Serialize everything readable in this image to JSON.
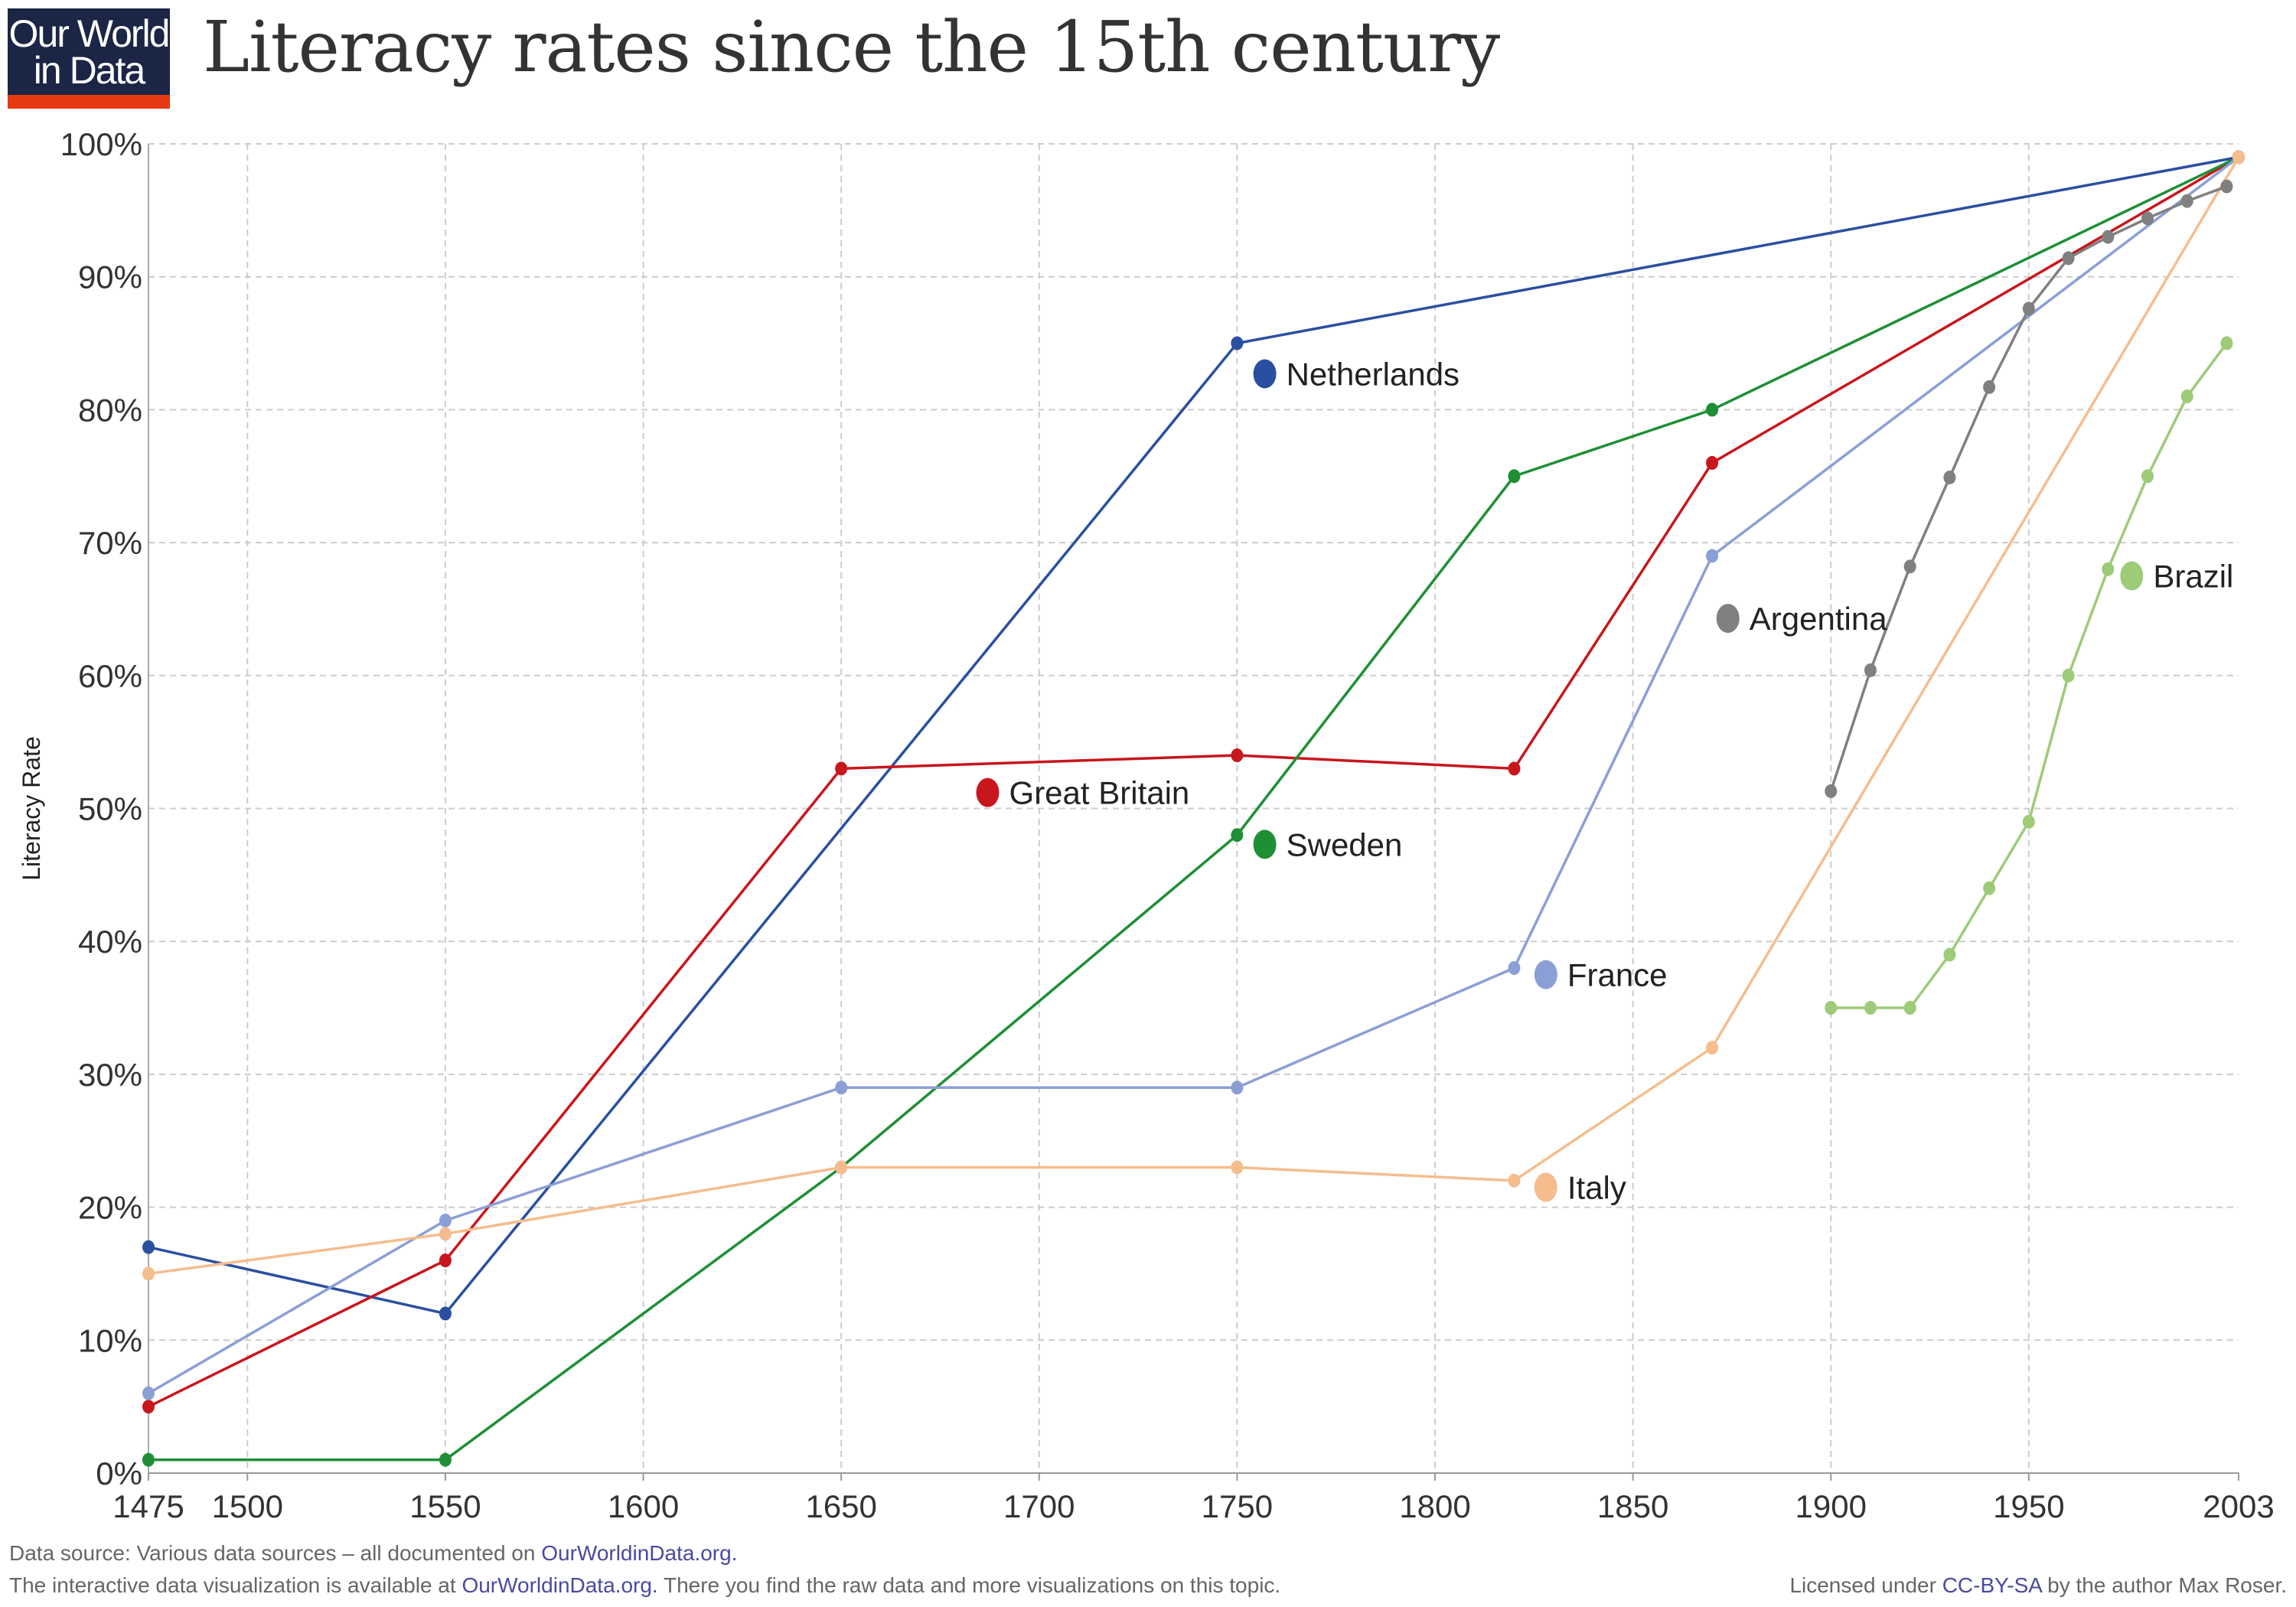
{
  "logo": {
    "line1": "Our World",
    "line2": "in Data"
  },
  "title": "Literacy rates since the 15th century",
  "chart_data": {
    "type": "line",
    "title": "Literacy rates since the 15th century",
    "ylabel": "Literacy Rate",
    "xlabel": "",
    "xlim": [
      1475,
      2003
    ],
    "ylim": [
      0,
      100
    ],
    "grid": true,
    "x_ticks": [
      1475,
      1500,
      1550,
      1600,
      1650,
      1700,
      1750,
      1800,
      1850,
      1900,
      1950,
      2003
    ],
    "y_ticks": [
      "0%",
      "10%",
      "20%",
      "30%",
      "40%",
      "50%",
      "60%",
      "70%",
      "80%",
      "90%",
      "100%"
    ],
    "series": [
      {
        "name": "Netherlands",
        "color": "#2a4fa0",
        "points": [
          [
            1475,
            17
          ],
          [
            1550,
            12
          ],
          [
            1750,
            85
          ],
          [
            2003,
            99
          ]
        ]
      },
      {
        "name": "Great Britain",
        "color": "#c8161d",
        "points": [
          [
            1475,
            5
          ],
          [
            1550,
            16
          ],
          [
            1650,
            53
          ],
          [
            1750,
            54
          ],
          [
            1820,
            53
          ],
          [
            1870,
            76
          ],
          [
            2003,
            99
          ]
        ]
      },
      {
        "name": "Sweden",
        "color": "#1e8f35",
        "points": [
          [
            1475,
            1
          ],
          [
            1550,
            1
          ],
          [
            1650,
            23
          ],
          [
            1750,
            48
          ],
          [
            1820,
            75
          ],
          [
            1870,
            80
          ],
          [
            2003,
            99
          ]
        ]
      },
      {
        "name": "France",
        "color": "#8b9fd6",
        "points": [
          [
            1475,
            6
          ],
          [
            1550,
            19
          ],
          [
            1650,
            29
          ],
          [
            1750,
            29
          ],
          [
            1820,
            38
          ],
          [
            1870,
            69
          ],
          [
            2003,
            99
          ]
        ]
      },
      {
        "name": "Italy",
        "color": "#f5bd8d",
        "points": [
          [
            1475,
            15
          ],
          [
            1550,
            18
          ],
          [
            1650,
            23
          ],
          [
            1750,
            23
          ],
          [
            1820,
            22
          ],
          [
            1870,
            32
          ],
          [
            2003,
            99
          ]
        ]
      },
      {
        "name": "Argentina",
        "color": "#808080",
        "points": [
          [
            1900,
            51.3
          ],
          [
            1910,
            60.4
          ],
          [
            1920,
            68.2
          ],
          [
            1930,
            74.9
          ],
          [
            1940,
            81.7
          ],
          [
            1950,
            87.6
          ],
          [
            1960,
            91.4
          ],
          [
            1970,
            93
          ],
          [
            1980,
            94.4
          ],
          [
            1990,
            95.7
          ],
          [
            2000,
            96.8
          ]
        ]
      },
      {
        "name": "Brazil",
        "color": "#9dcb78",
        "points": [
          [
            1900,
            35
          ],
          [
            1910,
            35
          ],
          [
            1920,
            35
          ],
          [
            1930,
            39
          ],
          [
            1940,
            44
          ],
          [
            1950,
            49
          ],
          [
            1960,
            60
          ],
          [
            1970,
            68
          ],
          [
            1980,
            75
          ],
          [
            1990,
            81
          ],
          [
            2000,
            85
          ]
        ]
      }
    ]
  },
  "footer": {
    "source_prefix": "Data source: Various data sources – all documented on ",
    "source_link": "OurWorldinData.org.",
    "interactive_prefix": "The interactive data visualization is available at ",
    "interactive_link": "OurWorldinData.org.",
    "interactive_suffix": " There you find the raw data and more visualizations on this topic.",
    "license_prefix": "Licensed under ",
    "license_link": "CC-BY-SA",
    "license_suffix": " by the author Max Roser."
  }
}
